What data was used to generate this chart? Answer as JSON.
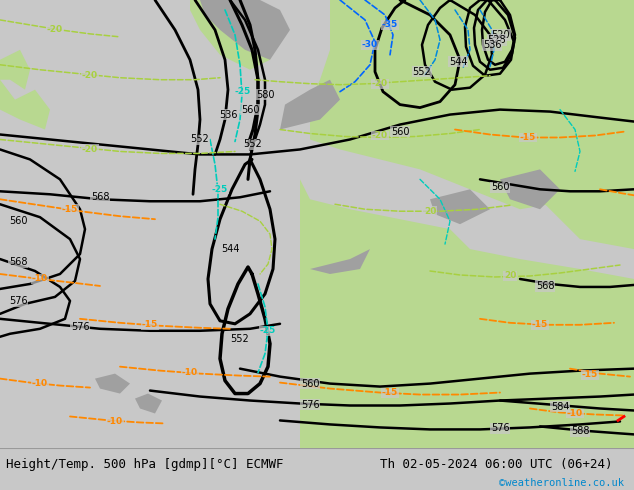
{
  "title_left": "Height/Temp. 500 hPa [gdmp][°C] ECMWF",
  "title_right": "Th 02-05-2024 06:00 UTC (06+24)",
  "watermark": "©weatheronline.co.uk",
  "bg_color": "#c8c8c8",
  "land_color_green": "#b8d890",
  "land_color_gray": "#a0a0a0",
  "bottom_bar_color": "#e0e0e0",
  "title_fontsize": 9,
  "watermark_color": "#0088cc",
  "figsize": [
    6.34,
    4.9
  ],
  "dpi": 100
}
